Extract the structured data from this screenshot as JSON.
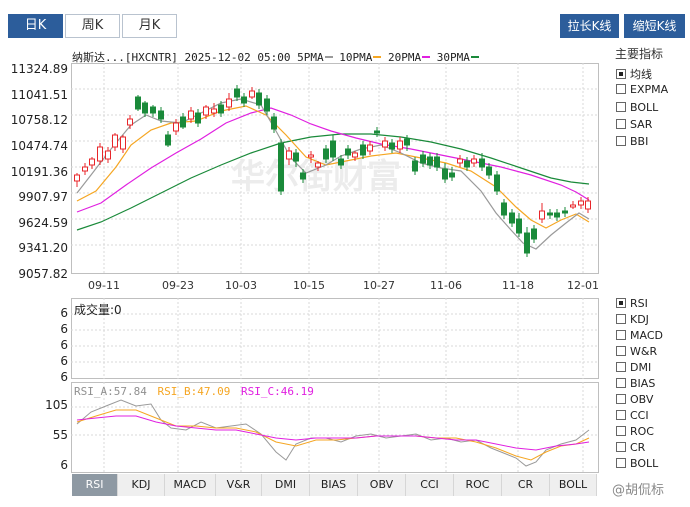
{
  "period_tabs": [
    {
      "label": "日K",
      "active": true
    },
    {
      "label": "周K",
      "active": false
    },
    {
      "label": "月K",
      "active": false
    }
  ],
  "toolbar": {
    "zoom_out_label": "拉长K线",
    "zoom_in_label": "缩短K线"
  },
  "main_chart": {
    "legend": {
      "name": "纳斯达...",
      "code": "[HXCNTR]",
      "datetime": "2025-12-02 05:00",
      "ma": [
        {
          "label": "5PMA",
          "color": "#9a9a9a"
        },
        {
          "label": "10PMA",
          "color": "#f5a623"
        },
        {
          "label": "20PMA",
          "color": "#e020e0"
        },
        {
          "label": "30PMA",
          "color": "#1a8a3a"
        }
      ]
    },
    "y_ticks": [
      "11324.89",
      "11041.51",
      "10758.12",
      "10474.74",
      "10191.36",
      "9907.97",
      "9624.59",
      "9341.20",
      "9057.82"
    ],
    "x_ticks": [
      "09-11",
      "09-23",
      "10-03",
      "10-15",
      "10-27",
      "11-06",
      "11-18",
      "12-01"
    ],
    "watermark": "华尔街财富",
    "up_color": "#e8262a",
    "down_color": "#1a8a3a"
  },
  "side_panel": {
    "title": "主要指标",
    "main_indicators": [
      {
        "label": "均线",
        "checked": true
      },
      {
        "label": "EXPMA",
        "checked": false
      },
      {
        "label": "BOLL",
        "checked": false
      },
      {
        "label": "SAR",
        "checked": false
      },
      {
        "label": "BBI",
        "checked": false
      }
    ],
    "sub_indicators": [
      {
        "label": "RSI",
        "checked": true
      },
      {
        "label": "KDJ",
        "checked": false
      },
      {
        "label": "MACD",
        "checked": false
      },
      {
        "label": "W&R",
        "checked": false
      },
      {
        "label": "DMI",
        "checked": false
      },
      {
        "label": "BIAS",
        "checked": false
      },
      {
        "label": "OBV",
        "checked": false
      },
      {
        "label": "CCI",
        "checked": false
      },
      {
        "label": "ROC",
        "checked": false
      },
      {
        "label": "CR",
        "checked": false
      },
      {
        "label": "BOLL",
        "checked": false
      }
    ]
  },
  "volume_panel": {
    "label": "成交量:0",
    "y_ticks": [
      "6",
      "6",
      "6",
      "6",
      "6"
    ]
  },
  "rsi_panel": {
    "legend": [
      {
        "label": "RSI_A:57.84",
        "color": "#909090"
      },
      {
        "label": "RSI_B:47.09",
        "color": "#f5a623"
      },
      {
        "label": "RSI_C:46.19",
        "color": "#e020e0"
      }
    ],
    "y_ticks": [
      "105",
      "55",
      "6"
    ]
  },
  "bottom_tabs": [
    {
      "label": "RSI",
      "active": true
    },
    {
      "label": "KDJ",
      "active": false
    },
    {
      "label": "MACD",
      "active": false
    },
    {
      "label": "V&R",
      "active": false
    },
    {
      "label": "DMI",
      "active": false
    },
    {
      "label": "BIAS",
      "active": false
    },
    {
      "label": "OBV",
      "active": false
    },
    {
      "label": "CCI",
      "active": false
    },
    {
      "label": "ROC",
      "active": false
    },
    {
      "label": "CR",
      "active": false
    },
    {
      "label": "BOLL",
      "active": false
    }
  ],
  "footer_watermark": "@胡侃标"
}
